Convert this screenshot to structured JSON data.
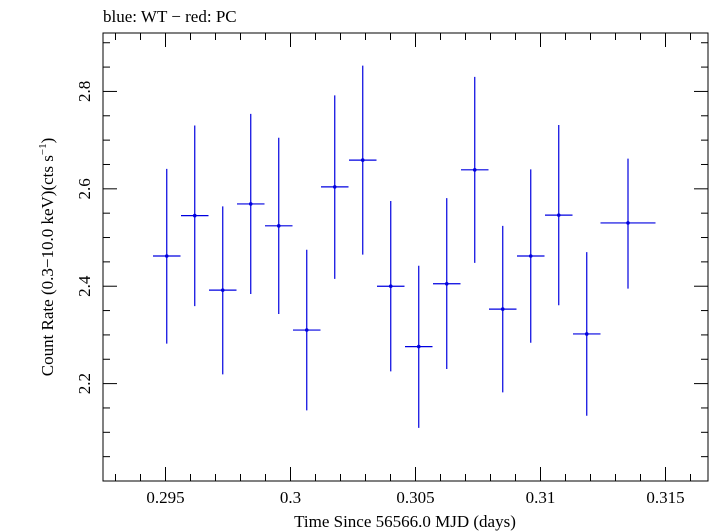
{
  "chart_data": {
    "type": "scatter",
    "title": "blue: WT − red: PC",
    "xlabel": "Time Since 56566.0 MJD (days)",
    "ylabel_main": "Count Rate (0.3−10.0 keV)(cts s",
    "ylabel_sup": "−1",
    "ylabel_close": ")",
    "xlim": [
      0.2925,
      0.3167
    ],
    "ylim": [
      2.0,
      2.92
    ],
    "grid": false,
    "x_ticks": [
      {
        "value": 0.295,
        "label": "0.295"
      },
      {
        "value": 0.3,
        "label": "0.3"
      },
      {
        "value": 0.305,
        "label": "0.305"
      },
      {
        "value": 0.31,
        "label": "0.31"
      },
      {
        "value": 0.315,
        "label": "0.315"
      }
    ],
    "y_ticks": [
      {
        "value": 2.2,
        "label": "2.2"
      },
      {
        "value": 2.4,
        "label": "2.4"
      },
      {
        "value": 2.6,
        "label": "2.6"
      },
      {
        "value": 2.8,
        "label": "2.8"
      }
    ],
    "series": [
      {
        "color": "#0000e0",
        "points": [
          {
            "x": 0.29505,
            "xerr": 0.00055,
            "y": 2.462,
            "ylo": 2.282,
            "yhi": 2.641
          },
          {
            "x": 0.29617,
            "xerr": 0.00055,
            "y": 2.545,
            "ylo": 2.359,
            "yhi": 2.73
          },
          {
            "x": 0.29729,
            "xerr": 0.00055,
            "y": 2.392,
            "ylo": 2.219,
            "yhi": 2.564
          },
          {
            "x": 0.29841,
            "xerr": 0.00055,
            "y": 2.569,
            "ylo": 2.384,
            "yhi": 2.754
          },
          {
            "x": 0.29953,
            "xerr": 0.00055,
            "y": 2.524,
            "ylo": 2.343,
            "yhi": 2.705
          },
          {
            "x": 0.30065,
            "xerr": 0.00055,
            "y": 2.31,
            "ylo": 2.145,
            "yhi": 2.475
          },
          {
            "x": 0.30177,
            "xerr": 0.00055,
            "y": 2.604,
            "ylo": 2.415,
            "yhi": 2.792
          },
          {
            "x": 0.30289,
            "xerr": 0.00055,
            "y": 2.659,
            "ylo": 2.465,
            "yhi": 2.853
          },
          {
            "x": 0.30401,
            "xerr": 0.00055,
            "y": 2.4,
            "ylo": 2.225,
            "yhi": 2.575
          },
          {
            "x": 0.30513,
            "xerr": 0.00055,
            "y": 2.276,
            "ylo": 2.109,
            "yhi": 2.442
          },
          {
            "x": 0.30625,
            "xerr": 0.00055,
            "y": 2.405,
            "ylo": 2.23,
            "yhi": 2.581
          },
          {
            "x": 0.30737,
            "xerr": 0.00055,
            "y": 2.639,
            "ylo": 2.448,
            "yhi": 2.83
          },
          {
            "x": 0.30849,
            "xerr": 0.00055,
            "y": 2.353,
            "ylo": 2.182,
            "yhi": 2.524
          },
          {
            "x": 0.30961,
            "xerr": 0.00055,
            "y": 2.462,
            "ylo": 2.284,
            "yhi": 2.64
          },
          {
            "x": 0.31073,
            "xerr": 0.00055,
            "y": 2.546,
            "ylo": 2.361,
            "yhi": 2.731
          },
          {
            "x": 0.31185,
            "xerr": 0.00055,
            "y": 2.302,
            "ylo": 2.134,
            "yhi": 2.47
          },
          {
            "x": 0.3135,
            "xerr": 0.0011,
            "y": 2.53,
            "ylo": 2.395,
            "yhi": 2.662
          }
        ]
      }
    ]
  }
}
